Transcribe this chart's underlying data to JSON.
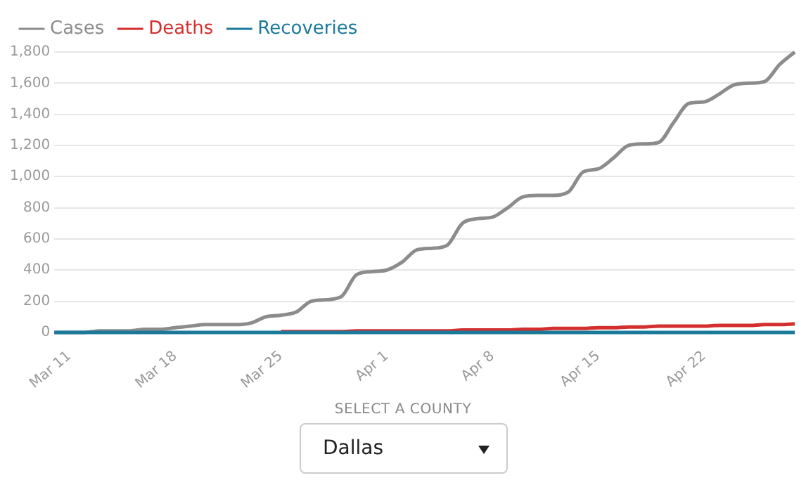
{
  "chart_data": {
    "type": "line",
    "x": [
      "--03-10",
      "--03-11",
      "--03-12",
      "--03-13",
      "--03-14",
      "--03-15",
      "--03-16",
      "--03-17",
      "--03-18",
      "--03-19",
      "--03-20",
      "--03-21",
      "--03-22",
      "--03-23",
      "--03-24",
      "--03-25",
      "--03-26",
      "--03-27",
      "--03-28",
      "--03-29",
      "--03-30",
      "--03-31",
      "--04-01",
      "--04-02",
      "--04-03",
      "--04-04",
      "--04-05",
      "--04-06",
      "--04-07",
      "--04-08",
      "--04-09",
      "--04-10",
      "--04-11",
      "--04-12",
      "--04-13",
      "--04-14",
      "--04-15",
      "--04-16",
      "--04-17",
      "--04-18",
      "--04-19",
      "--04-20",
      "--04-21",
      "--04-22",
      "--04-23",
      "--04-24",
      "--04-25",
      "--04-26",
      "--04-27",
      "--04-28"
    ],
    "series": [
      {
        "name": "Cases",
        "color": "#8c8c8c",
        "values": [
          0,
          0,
          0,
          10,
          10,
          10,
          20,
          20,
          30,
          40,
          50,
          50,
          50,
          60,
          100,
          110,
          130,
          200,
          210,
          230,
          370,
          390,
          400,
          450,
          530,
          540,
          560,
          700,
          730,
          740,
          800,
          870,
          880,
          880,
          900,
          1030,
          1050,
          1120,
          1200,
          1210,
          1220,
          1350,
          1470,
          1480,
          1530,
          1590,
          1600,
          1610,
          1720,
          1800
        ]
      },
      {
        "name": "Deaths",
        "color": "#d32f2f",
        "values": [
          null,
          null,
          null,
          null,
          null,
          null,
          null,
          null,
          null,
          null,
          null,
          null,
          null,
          null,
          null,
          5,
          5,
          5,
          5,
          5,
          10,
          10,
          10,
          10,
          10,
          10,
          10,
          15,
          15,
          15,
          15,
          20,
          20,
          25,
          25,
          25,
          30,
          30,
          35,
          35,
          40,
          40,
          40,
          40,
          45,
          45,
          45,
          50,
          50,
          55
        ]
      },
      {
        "name": "Recoveries",
        "color": "#1b7a9a",
        "values": [
          0,
          0,
          0,
          0,
          0,
          0,
          0,
          0,
          0,
          0,
          0,
          0,
          0,
          0,
          0,
          0,
          0,
          0,
          0,
          0,
          0,
          0,
          0,
          0,
          0,
          0,
          0,
          0,
          0,
          0,
          0,
          0,
          0,
          0,
          0,
          0,
          0,
          0,
          0,
          0,
          0,
          0,
          0,
          0,
          0,
          0,
          0,
          0,
          0,
          0
        ]
      }
    ],
    "xlim": [
      "--03-10",
      "--04-28"
    ],
    "xticks": [
      {
        "value": "--03-11",
        "label": "Mar 11"
      },
      {
        "value": "--03-18",
        "label": "Mar 18"
      },
      {
        "value": "--03-25",
        "label": "Mar 25"
      },
      {
        "value": "--04-01",
        "label": "Apr 1"
      },
      {
        "value": "--04-08",
        "label": "Apr 8"
      },
      {
        "value": "--04-15",
        "label": "Apr 15"
      },
      {
        "value": "--04-22",
        "label": "Apr 22"
      }
    ],
    "ylim": [
      0,
      1800
    ],
    "yticks": [
      0,
      {
        "value": 200,
        "label": "200"
      },
      {
        "value": 400,
        "label": "400"
      },
      {
        "value": 600,
        "label": "600"
      },
      {
        "value": 800,
        "label": "800"
      },
      {
        "value": 1000,
        "label": "1,000"
      },
      {
        "value": 1200,
        "label": "1,200"
      },
      {
        "value": 1400,
        "label": "1,400"
      },
      {
        "value": 1600,
        "label": "1,600"
      },
      {
        "value": 1800,
        "label": "1,800"
      }
    ],
    "grid": "y",
    "legend": "top left",
    "marker": "none",
    "line_style": "solid",
    "annotations": [
      "SELECT A COUNTY",
      "Dallas"
    ]
  }
}
